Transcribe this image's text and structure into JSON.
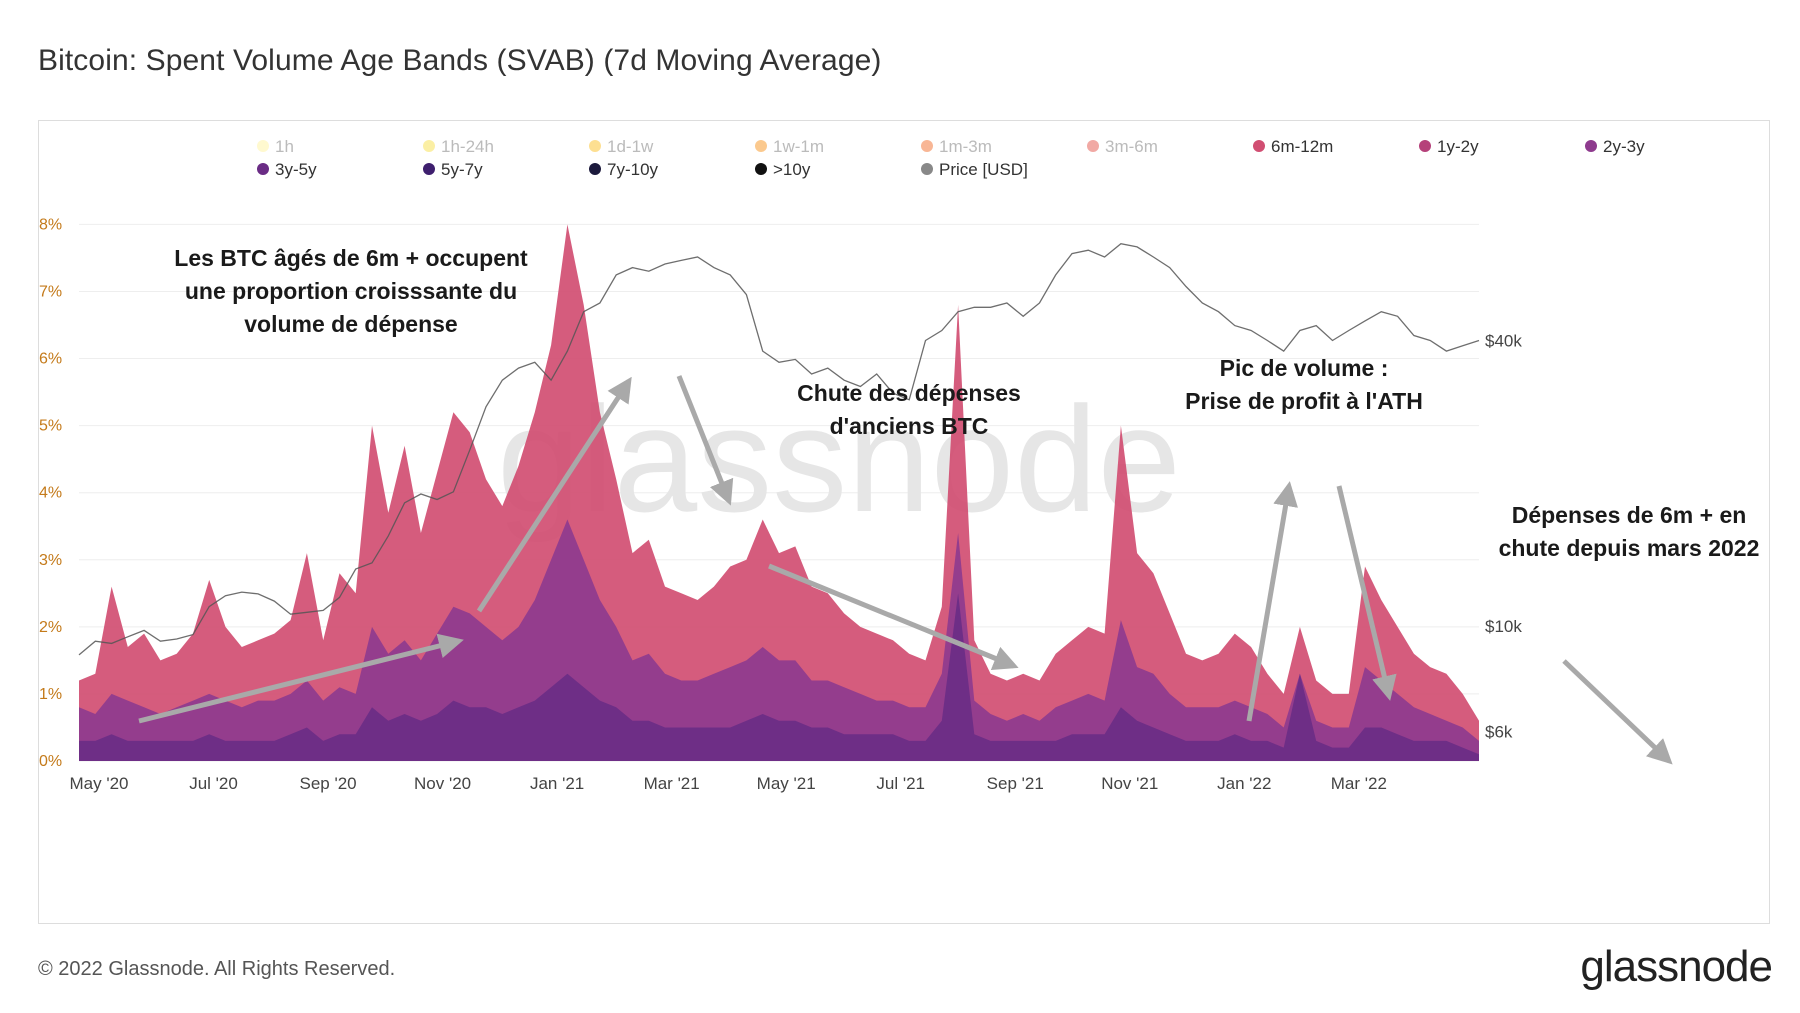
{
  "title": "Bitcoin: Spent Volume Age Bands (SVAB) (7d Moving Average)",
  "footer": {
    "copyright": "© 2022 Glassnode. All Rights Reserved.",
    "brand": "glassnode"
  },
  "watermark": "glassnode",
  "chart_data": {
    "type": "area",
    "stacked": true,
    "title": "Bitcoin: Spent Volume Age Bands (SVAB) (7d Moving Average)",
    "x_ticks": [
      "May '20",
      "Jul '20",
      "Sep '20",
      "Nov '20",
      "Jan '21",
      "Mar '21",
      "May '21",
      "Jul '21",
      "Sep '21",
      "Nov '21",
      "Jan '22",
      "Mar '22"
    ],
    "y_left": {
      "ticks": [
        "0%",
        "1%",
        "2%",
        "3%",
        "4%",
        "5%",
        "6%",
        "7%",
        "8%"
      ],
      "range": [
        0,
        8.2
      ],
      "unit": "%"
    },
    "y_right": {
      "ticks": [
        "$6k",
        "$10k",
        "$40k"
      ],
      "scale": "log",
      "range": [
        5200,
        75000
      ]
    },
    "legend": [
      {
        "name": "1h",
        "color": "#fff3a0",
        "visible": false
      },
      {
        "name": "1h-24h",
        "color": "#f7df4a",
        "visible": false
      },
      {
        "name": "1d-1w",
        "color": "#fbbf24",
        "visible": false
      },
      {
        "name": "1w-1m",
        "color": "#f7941d",
        "visible": false
      },
      {
        "name": "1m-3m",
        "color": "#f26d2c",
        "visible": false
      },
      {
        "name": "3m-6m",
        "color": "#e4534a",
        "visible": false
      },
      {
        "name": "6m-12m",
        "color": "#d14e72",
        "visible": true
      },
      {
        "name": "1y-2y",
        "color": "#b5417a",
        "visible": true
      },
      {
        "name": "2y-3y",
        "color": "#8e3b8e",
        "visible": true
      },
      {
        "name": "3y-5y",
        "color": "#6a2c85",
        "visible": true
      },
      {
        "name": "5y-7y",
        "color": "#3e1f6e",
        "visible": true
      },
      {
        "name": "7y-10y",
        "color": "#1c1a3c",
        "visible": true
      },
      {
        "name": ">10y",
        "color": "#111111",
        "visible": true
      },
      {
        "name": "Price [USD]",
        "color": "#888888",
        "visible": true
      }
    ],
    "total_series_pct": [
      1.2,
      1.3,
      2.6,
      1.7,
      1.9,
      1.5,
      1.6,
      1.9,
      2.7,
      2.0,
      1.7,
      1.8,
      1.9,
      2.1,
      3.1,
      1.8,
      2.8,
      2.5,
      5.0,
      3.7,
      4.7,
      3.4,
      4.3,
      5.2,
      4.9,
      4.2,
      3.8,
      4.4,
      5.2,
      6.2,
      8.0,
      6.8,
      5.2,
      4.2,
      3.1,
      3.3,
      2.6,
      2.5,
      2.4,
      2.6,
      2.9,
      3.0,
      3.6,
      3.1,
      3.2,
      2.6,
      2.5,
      2.2,
      2.0,
      1.9,
      1.8,
      1.6,
      1.5,
      2.3,
      6.8,
      1.8,
      1.3,
      1.2,
      1.3,
      1.2,
      1.6,
      1.8,
      2.0,
      1.9,
      5.0,
      3.1,
      2.8,
      2.2,
      1.6,
      1.5,
      1.6,
      1.9,
      1.7,
      1.3,
      1.0,
      2.0,
      1.2,
      1.0,
      1.0,
      2.9,
      2.4,
      2.0,
      1.6,
      1.4,
      1.3,
      1.0,
      0.6
    ],
    "old_bands_series_pct": [
      0.8,
      0.7,
      1.0,
      0.9,
      0.8,
      0.7,
      0.8,
      0.9,
      1.0,
      0.9,
      0.8,
      0.9,
      0.9,
      1.0,
      1.2,
      0.9,
      1.1,
      1.0,
      2.0,
      1.6,
      1.8,
      1.5,
      1.9,
      2.3,
      2.2,
      2.0,
      1.8,
      2.0,
      2.4,
      3.0,
      3.6,
      3.0,
      2.4,
      2.0,
      1.5,
      1.6,
      1.3,
      1.2,
      1.2,
      1.3,
      1.4,
      1.5,
      1.7,
      1.5,
      1.5,
      1.2,
      1.2,
      1.1,
      1.0,
      0.9,
      0.9,
      0.8,
      0.8,
      1.3,
      3.4,
      0.9,
      0.7,
      0.6,
      0.7,
      0.6,
      0.8,
      0.9,
      1.0,
      0.9,
      2.1,
      1.4,
      1.3,
      1.0,
      0.8,
      0.8,
      0.8,
      0.9,
      0.8,
      0.7,
      0.5,
      1.3,
      0.6,
      0.5,
      0.5,
      1.4,
      1.2,
      1.0,
      0.8,
      0.7,
      0.6,
      0.5,
      0.3
    ],
    "deep_bands_series_pct": [
      0.3,
      0.3,
      0.4,
      0.3,
      0.3,
      0.3,
      0.3,
      0.3,
      0.4,
      0.3,
      0.3,
      0.3,
      0.3,
      0.4,
      0.5,
      0.3,
      0.4,
      0.4,
      0.8,
      0.6,
      0.7,
      0.6,
      0.7,
      0.9,
      0.8,
      0.8,
      0.7,
      0.8,
      0.9,
      1.1,
      1.3,
      1.1,
      0.9,
      0.8,
      0.6,
      0.6,
      0.5,
      0.5,
      0.5,
      0.5,
      0.5,
      0.6,
      0.7,
      0.6,
      0.6,
      0.5,
      0.5,
      0.4,
      0.4,
      0.4,
      0.4,
      0.3,
      0.3,
      0.6,
      2.5,
      0.4,
      0.3,
      0.3,
      0.3,
      0.3,
      0.3,
      0.4,
      0.4,
      0.4,
      0.8,
      0.6,
      0.5,
      0.4,
      0.3,
      0.3,
      0.3,
      0.4,
      0.3,
      0.3,
      0.2,
      1.3,
      0.3,
      0.2,
      0.2,
      0.5,
      0.5,
      0.4,
      0.3,
      0.3,
      0.3,
      0.2,
      0.1
    ],
    "price_usd": [
      8700,
      9300,
      9200,
      9500,
      9800,
      9300,
      9400,
      9600,
      11000,
      11600,
      11800,
      11700,
      11300,
      10600,
      10700,
      10800,
      11500,
      13200,
      13600,
      15500,
      18200,
      19000,
      18500,
      19200,
      23500,
      29000,
      33000,
      35000,
      36000,
      33000,
      38000,
      46000,
      48000,
      55000,
      57000,
      56000,
      58000,
      59000,
      60000,
      57000,
      55000,
      50000,
      38000,
      36000,
      36500,
      34000,
      35000,
      33000,
      32000,
      34000,
      31000,
      30000,
      40000,
      42000,
      46000,
      47000,
      47000,
      48000,
      45000,
      48000,
      55000,
      61000,
      62000,
      60000,
      64000,
      63000,
      60000,
      57000,
      52000,
      48000,
      46000,
      43000,
      42000,
      40000,
      38000,
      42000,
      43000,
      40000,
      42000,
      44000,
      46000,
      45000,
      41000,
      40000,
      38000,
      39000,
      40000
    ],
    "annotations": [
      {
        "text": [
          "Les BTC âgés de 6m + occupent",
          "une proportion croisssante du",
          "volume de dépense"
        ]
      },
      {
        "text": [
          "Chute des dépenses",
          "d'anciens BTC"
        ]
      },
      {
        "text": [
          "Pic de volume :",
          "Prise de profit à l'ATH"
        ]
      },
      {
        "text": [
          "Dépenses de 6m + en",
          "chute depuis mars 2022"
        ]
      }
    ]
  }
}
